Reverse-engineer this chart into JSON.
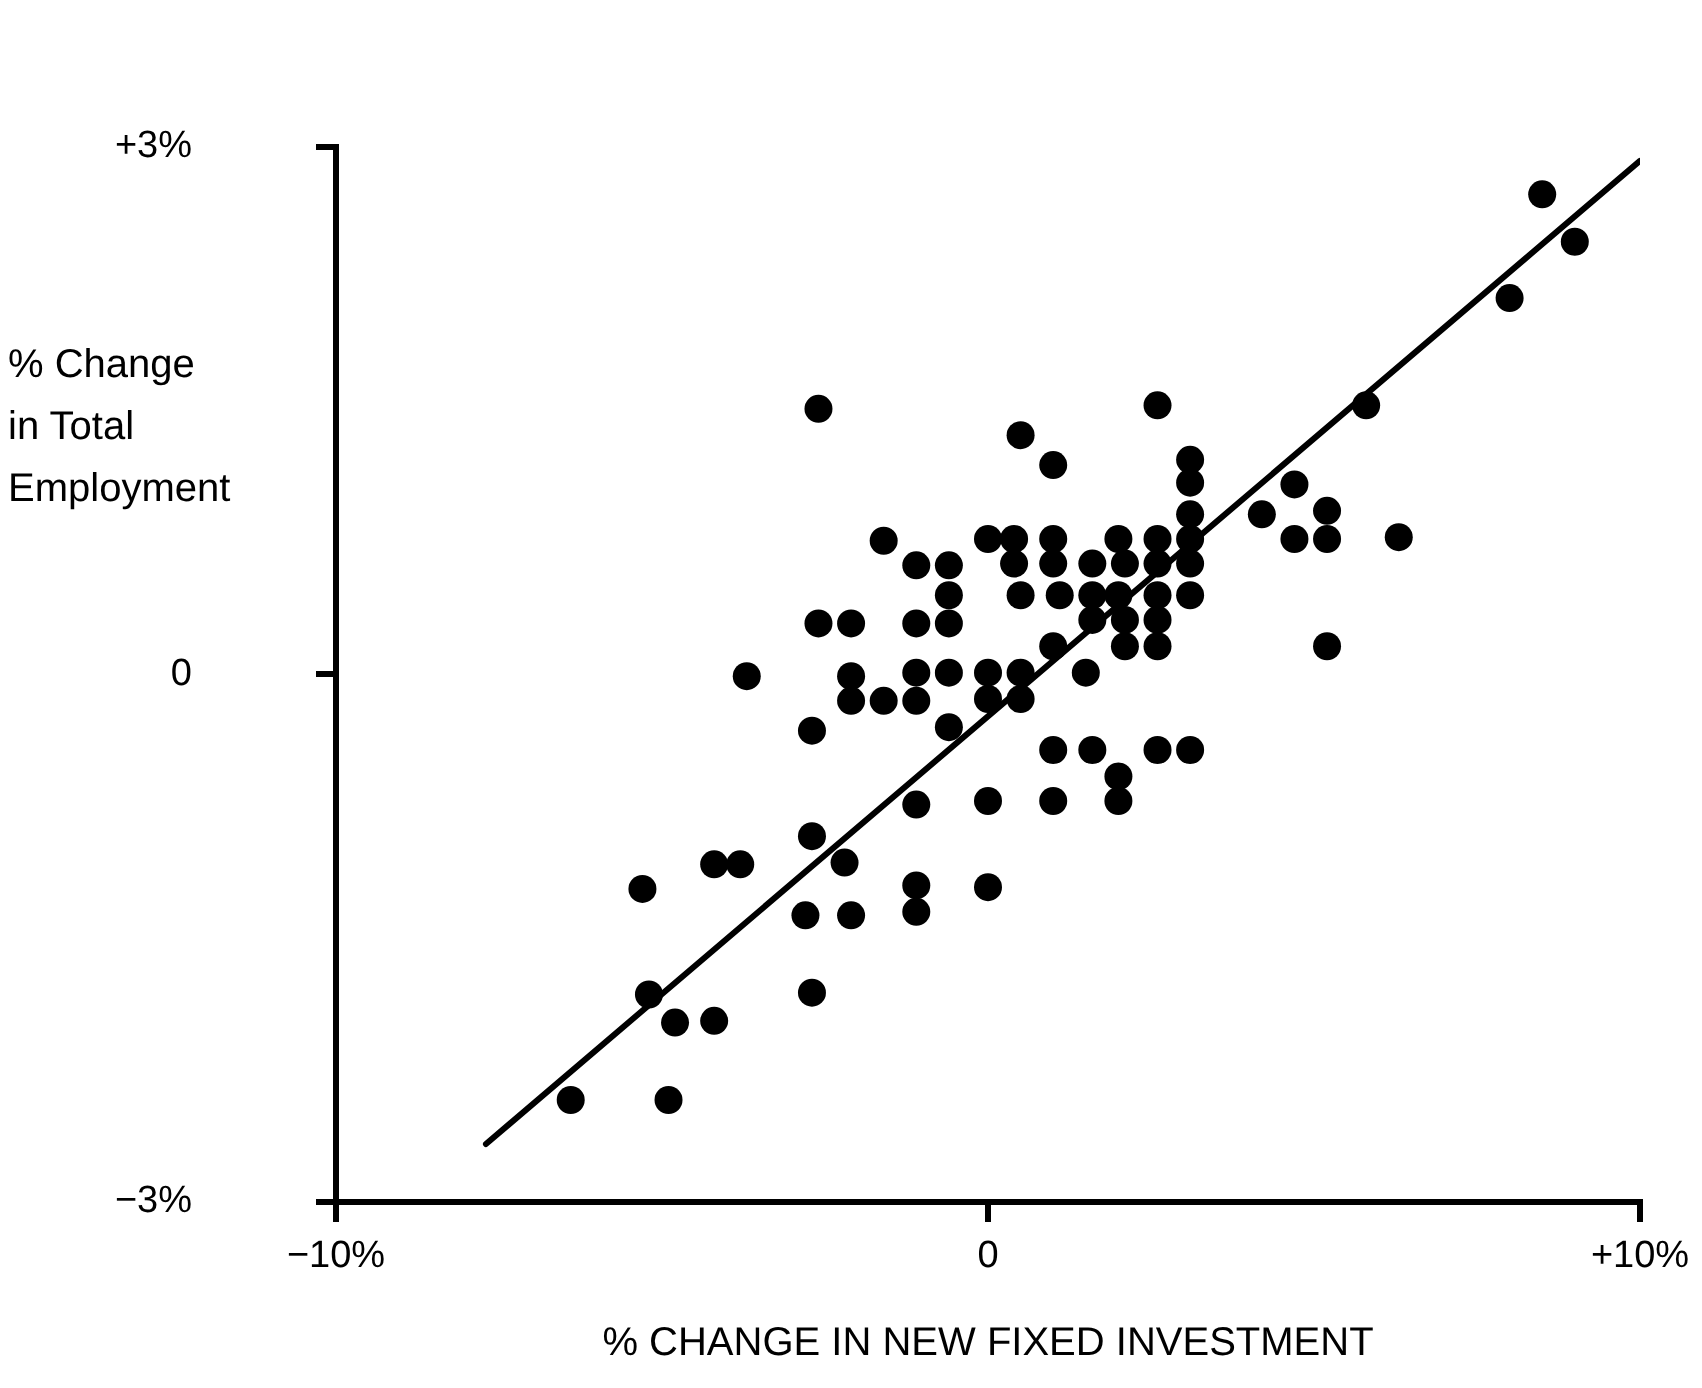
{
  "chart_data": {
    "type": "scatter",
    "xlabel": "% CHANGE IN NEW FIXED INVESTMENT",
    "ylabel": "% Change in Total Employment",
    "xlim": [
      -10,
      10
    ],
    "ylim": [
      -3,
      3
    ],
    "xticks": [
      {
        "value": -10,
        "label": "−10%"
      },
      0,
      {
        "value": 10,
        "label": "+10%"
      }
    ],
    "yticks": [
      {
        "value": -3,
        "label": "−3%"
      },
      0,
      {
        "value": 3,
        "label": "+3%"
      }
    ],
    "grid": false,
    "marker": "circle",
    "series": [
      {
        "color": "#000000",
        "x": [
          8.5,
          9.0,
          8.0,
          5.8,
          2.6,
          0.5,
          1.0,
          3.1,
          3.1,
          3.1,
          4.7,
          4.2,
          5.2,
          4.7,
          5.2,
          6.3,
          5.2,
          0.0,
          0.4,
          1.0,
          2.0,
          2.6,
          3.1,
          0.4,
          1.0,
          1.6,
          2.1,
          2.6,
          3.1,
          0.5,
          1.1,
          1.6,
          2.0,
          2.6,
          3.1,
          1.6,
          2.1,
          2.6,
          1.0,
          2.1,
          2.6,
          0.0,
          0.5,
          1.5,
          0.0,
          0.5,
          1.0,
          1.6,
          2.6,
          3.1,
          2.0,
          0.0,
          1.0,
          2.0,
          -2.6,
          -1.6,
          -1.1,
          -0.6,
          -0.6,
          -2.6,
          -2.1,
          -1.1,
          -0.6,
          -3.7,
          -2.1,
          -1.1,
          -0.6,
          -2.1,
          -1.6,
          -1.1,
          -2.7,
          -0.6,
          -1.1,
          -2.7,
          -4.2,
          -3.8,
          -2.2,
          -5.3,
          -2.8,
          -2.1,
          -1.1,
          -1.1,
          0.0,
          -5.2,
          -4.8,
          -4.2,
          -2.7,
          -6.4,
          -4.9
        ],
        "values": [
          2.73,
          2.46,
          2.14,
          1.53,
          1.53,
          1.36,
          1.19,
          1.22,
          1.09,
          0.91,
          1.08,
          0.91,
          0.93,
          0.77,
          0.77,
          0.78,
          0.16,
          0.77,
          0.77,
          0.77,
          0.77,
          0.77,
          0.77,
          0.63,
          0.63,
          0.63,
          0.63,
          0.63,
          0.63,
          0.45,
          0.45,
          0.45,
          0.45,
          0.45,
          0.45,
          0.31,
          0.31,
          0.31,
          0.16,
          0.16,
          0.16,
          0.01,
          0.01,
          0.01,
          -0.14,
          -0.14,
          -0.43,
          -0.43,
          -0.43,
          -0.43,
          -0.58,
          -0.72,
          -0.72,
          -0.72,
          1.51,
          0.76,
          0.62,
          0.62,
          0.45,
          0.29,
          0.29,
          0.29,
          0.29,
          -0.01,
          -0.01,
          0.01,
          0.01,
          -0.15,
          -0.15,
          -0.15,
          -0.32,
          -0.3,
          -0.74,
          -0.92,
          -1.08,
          -1.08,
          -1.07,
          -1.22,
          -1.37,
          -1.37,
          -1.2,
          -1.35,
          -1.21,
          -1.82,
          -1.98,
          -1.97,
          -1.81,
          -2.42,
          -2.42
        ]
      },
      {
        "type": "line",
        "color": "#000000",
        "marker": "none",
        "x": [
          -7.7,
          10.0
        ],
        "values": [
          -2.67,
          2.92
        ]
      }
    ]
  }
}
